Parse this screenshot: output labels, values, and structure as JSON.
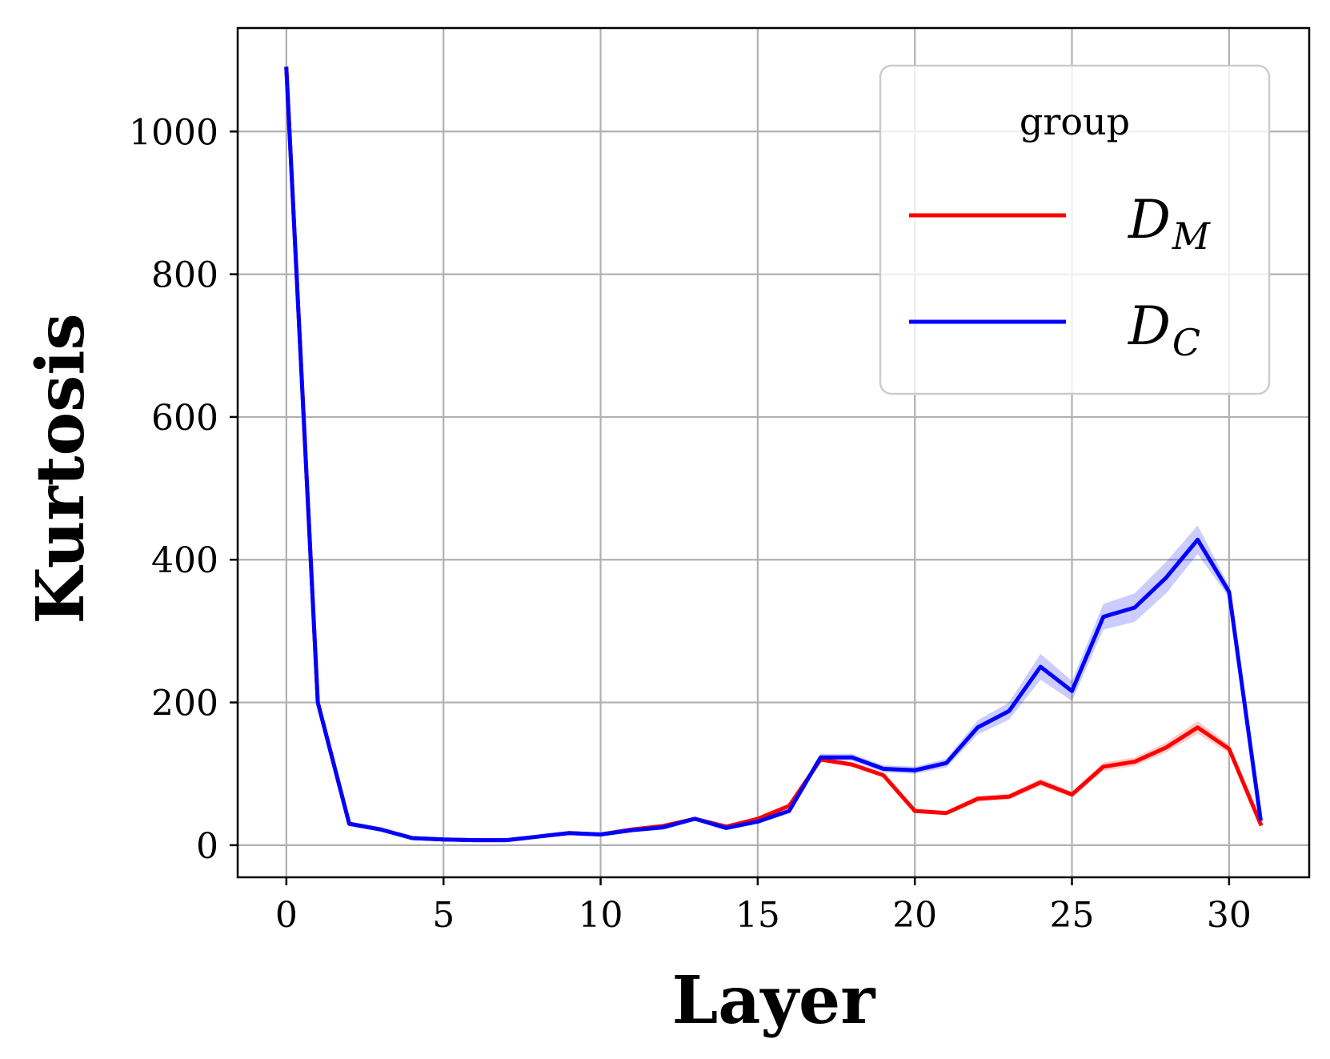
{
  "chart_data": {
    "type": "line",
    "xlabel": "Layer",
    "ylabel": "Kurtosis",
    "xlim": [
      -1.55,
      32.55
    ],
    "ylim": [
      -45,
      1145
    ],
    "xticks": [
      0,
      5,
      10,
      15,
      20,
      25,
      30
    ],
    "yticks": [
      0,
      200,
      400,
      600,
      800,
      1000
    ],
    "grid": true,
    "legend": {
      "title": "group",
      "placement": "top-right",
      "entries": [
        {
          "main": "D",
          "sub": "M"
        },
        {
          "main": "D",
          "sub": "C"
        }
      ]
    },
    "x": [
      0,
      1,
      2,
      3,
      4,
      5,
      6,
      7,
      8,
      9,
      10,
      11,
      12,
      13,
      14,
      15,
      16,
      17,
      18,
      19,
      20,
      21,
      22,
      23,
      24,
      25,
      26,
      27,
      28,
      29,
      30,
      31
    ],
    "series": [
      {
        "name": "D_M",
        "color": "#ff0000",
        "values": [
          1088,
          200,
          30,
          22,
          10,
          8,
          7,
          7,
          12,
          17,
          15,
          22,
          27,
          37,
          26,
          37,
          55,
          120,
          113,
          98,
          48,
          45,
          65,
          68,
          88,
          71,
          110,
          117,
          137,
          165,
          135,
          30
        ],
        "band": [
          0,
          0,
          0,
          0,
          0,
          0,
          0,
          0,
          0,
          0,
          0,
          0,
          0,
          0,
          0,
          0,
          0,
          3,
          3,
          3,
          3,
          3,
          4,
          4,
          5,
          4,
          6,
          6,
          7,
          9,
          6,
          2
        ]
      },
      {
        "name": "D_C",
        "color": "#0000ff",
        "values": [
          1088,
          200,
          30,
          22,
          10,
          8,
          7,
          7,
          12,
          17,
          15,
          21,
          25,
          37,
          24,
          33,
          48,
          123,
          123,
          107,
          105,
          115,
          165,
          188,
          250,
          216,
          320,
          333,
          375,
          428,
          355,
          37
        ],
        "band": [
          0,
          0,
          0,
          0,
          0,
          0,
          0,
          0,
          0,
          0,
          0,
          0,
          0,
          0,
          0,
          0,
          0,
          5,
          5,
          5,
          5,
          6,
          10,
          12,
          18,
          14,
          18,
          20,
          22,
          20,
          8,
          3
        ]
      }
    ]
  }
}
